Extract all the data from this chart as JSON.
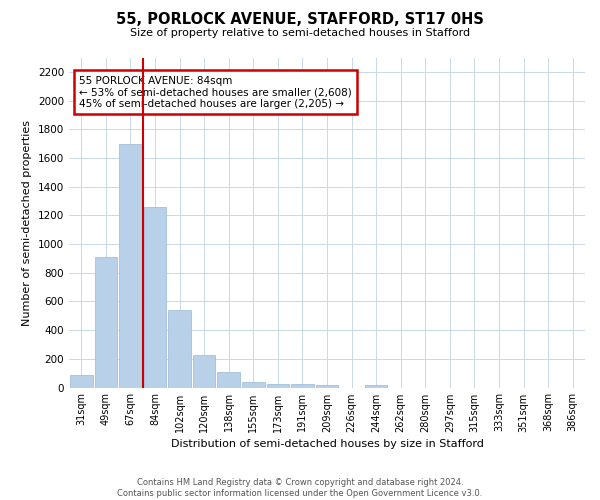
{
  "title": "55, PORLOCK AVENUE, STAFFORD, ST17 0HS",
  "subtitle": "Size of property relative to semi-detached houses in Stafford",
  "xlabel": "Distribution of semi-detached houses by size in Stafford",
  "ylabel": "Number of semi-detached properties",
  "footer_line1": "Contains HM Land Registry data © Crown copyright and database right 2024.",
  "footer_line2": "Contains public sector information licensed under the Open Government Licence v3.0.",
  "bar_labels": [
    "31sqm",
    "49sqm",
    "67sqm",
    "84sqm",
    "102sqm",
    "120sqm",
    "138sqm",
    "155sqm",
    "173sqm",
    "191sqm",
    "209sqm",
    "226sqm",
    "244sqm",
    "262sqm",
    "280sqm",
    "297sqm",
    "315sqm",
    "333sqm",
    "351sqm",
    "368sqm",
    "386sqm"
  ],
  "bar_values": [
    90,
    910,
    1700,
    1260,
    540,
    230,
    105,
    40,
    25,
    25,
    20,
    0,
    20,
    0,
    0,
    0,
    0,
    0,
    0,
    0,
    0
  ],
  "bar_color": "#b8d0e8",
  "bar_edge_color": "#9ab8d8",
  "vline_x": 2.5,
  "vline_color": "#cc0000",
  "annotation_title": "55 PORLOCK AVENUE: 84sqm",
  "annotation_line2": "← 53% of semi-detached houses are smaller (2,608)",
  "annotation_line3": "45% of semi-detached houses are larger (2,205) →",
  "ylim": [
    0,
    2300
  ],
  "yticks": [
    0,
    200,
    400,
    600,
    800,
    1000,
    1200,
    1400,
    1600,
    1800,
    2000,
    2200
  ],
  "grid_color": "#c8d8e8",
  "background_color": "#ffffff"
}
